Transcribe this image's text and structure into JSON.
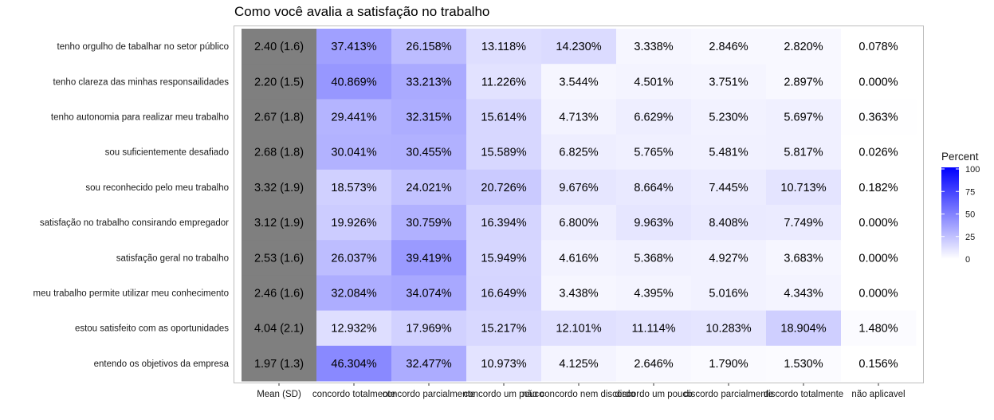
{
  "chart_data": {
    "type": "heatmap",
    "title": "Como você avalia a satisfação no trabalho",
    "columns": [
      "Mean (SD)",
      "concordo totalmente",
      "concordo parcialmente",
      "concordo um pouco",
      "não concordo nem discordo",
      "discordo um pouco",
      "discordo parcialmente",
      "discordo totalmente",
      "não aplicavel"
    ],
    "rows": [
      {
        "label": "tenho orgulho de tabalhar no setor público",
        "mean_sd": "2.40 (1.6)",
        "values": [
          37.413,
          26.158,
          13.118,
          14.23,
          3.338,
          2.846,
          2.82,
          0.078
        ]
      },
      {
        "label": "tenho clareza das minhas responsailidades",
        "mean_sd": "2.20 (1.5)",
        "values": [
          40.869,
          33.213,
          11.226,
          3.544,
          4.501,
          3.751,
          2.897,
          0.0
        ]
      },
      {
        "label": "tenho autonomia para realizar meu trabalho",
        "mean_sd": "2.67 (1.8)",
        "values": [
          29.441,
          32.315,
          15.614,
          4.713,
          6.629,
          5.23,
          5.697,
          0.363
        ]
      },
      {
        "label": "sou suficientemente desafiado",
        "mean_sd": "2.68 (1.8)",
        "values": [
          30.041,
          30.455,
          15.589,
          6.825,
          5.765,
          5.481,
          5.817,
          0.026
        ]
      },
      {
        "label": "sou reconhecido pelo meu trabalho",
        "mean_sd": "3.32 (1.9)",
        "values": [
          18.573,
          24.021,
          20.726,
          9.676,
          8.664,
          7.445,
          10.713,
          0.182
        ]
      },
      {
        "label": "satisfação no trabalho consirando empregador",
        "mean_sd": "3.12 (1.9)",
        "values": [
          19.926,
          30.759,
          16.394,
          6.8,
          9.963,
          8.408,
          7.749,
          0.0
        ]
      },
      {
        "label": "satisfação geral no trabalho",
        "mean_sd": "2.53 (1.6)",
        "values": [
          26.037,
          39.419,
          15.949,
          4.616,
          5.368,
          4.927,
          3.683,
          0.0
        ]
      },
      {
        "label": "meu trabalho permite utilizar meu conhecimento",
        "mean_sd": "2.46 (1.6)",
        "values": [
          32.084,
          34.074,
          16.649,
          3.438,
          4.395,
          5.016,
          4.343,
          0.0
        ]
      },
      {
        "label": "estou satisfeito com as oportunidades",
        "mean_sd": "4.04 (2.1)",
        "values": [
          12.932,
          17.969,
          15.217,
          12.101,
          11.114,
          10.283,
          18.904,
          1.48
        ]
      },
      {
        "label": "entendo os objetivos da empresa",
        "mean_sd": "1.97 (1.3)",
        "values": [
          46.304,
          32.477,
          10.973,
          4.125,
          2.646,
          1.79,
          1.53,
          0.156
        ]
      }
    ],
    "legend": {
      "title": "Percent",
      "ticks": [
        0,
        25,
        50,
        75,
        100
      ],
      "low_color": "#ffffff",
      "high_color": "#0000ff",
      "position": "right"
    },
    "mean_column_color": "#7f7f7f",
    "value_suffix": "%",
    "value_decimals": 3
  }
}
